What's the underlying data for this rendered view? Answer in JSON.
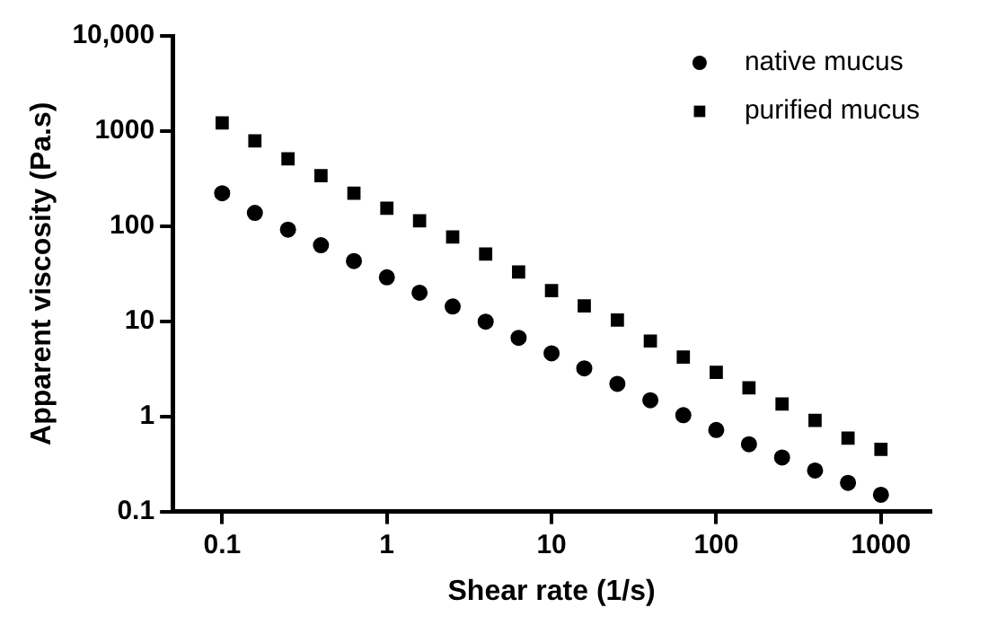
{
  "chart_data": {
    "type": "scatter",
    "xlabel": "Shear rate (1/s)",
    "ylabel": "Apparent viscosity (Pa.s)",
    "log": "xy",
    "grid": false,
    "legend": "top right",
    "x": [
      0.1,
      0.158,
      0.251,
      0.398,
      0.631,
      1,
      1.58,
      2.51,
      3.98,
      6.31,
      10,
      15.8,
      25.1,
      39.8,
      63.1,
      100,
      158,
      251,
      398,
      631,
      1000
    ],
    "series": [
      {
        "name": "native mucus",
        "color": "#000000",
        "marker": "circle",
        "values": [
          222,
          138,
          92,
          63,
          43,
          29,
          20,
          14.3,
          9.9,
          6.7,
          4.6,
          3.2,
          2.2,
          1.48,
          1.03,
          0.72,
          0.51,
          0.37,
          0.27,
          0.2,
          0.15
        ]
      },
      {
        "name": "purified mucus",
        "color": "#000000",
        "marker": "square",
        "values": [
          1220,
          790,
          510,
          340,
          222,
          154,
          114,
          77,
          51,
          33,
          21,
          14.5,
          10.3,
          6.2,
          4.2,
          2.9,
          2,
          1.35,
          0.91,
          0.59,
          0.45
        ]
      }
    ],
    "xlim": [
      0.05,
      2000
    ],
    "xticks": [
      0.1,
      1,
      10,
      100,
      1000
    ],
    "ylim": [
      0.1,
      10000
    ],
    "yticks": [
      0.1,
      1,
      10,
      100,
      1000,
      {
        "value": 10000,
        "label": "10,000"
      }
    ]
  }
}
